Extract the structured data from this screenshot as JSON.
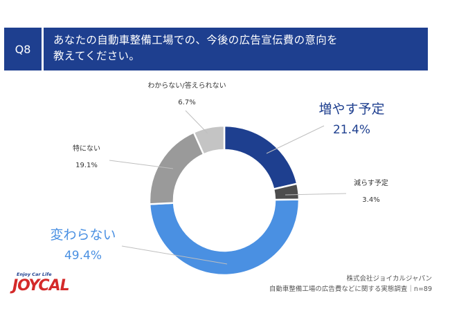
{
  "header": {
    "question_no": "Q8",
    "title_line1": "あなたの自動車整備工場での、今後の広告宣伝費の意向を",
    "title_line2": "教えてください。"
  },
  "chart_data": {
    "type": "pie",
    "donut": true,
    "title": "",
    "slices": [
      {
        "label": "増やす予定",
        "value": 21.4,
        "display": "21.4%",
        "color": "#1e3f8f"
      },
      {
        "label": "減らす予定",
        "value": 3.4,
        "display": "3.4%",
        "color": "#4d4d4d"
      },
      {
        "label": "変わらない",
        "value": 49.4,
        "display": "49.4%",
        "color": "#4a90e2"
      },
      {
        "label": "特にない",
        "value": 19.1,
        "display": "19.1%",
        "color": "#9a9a9a"
      },
      {
        "label": "わからない/答えられない",
        "value": 6.7,
        "display": "6.7%",
        "color": "#c4c4c4"
      }
    ]
  },
  "footer": {
    "company": "株式会社ジョイカルジャパン",
    "survey": "自動車整備工場の広告費などに関する実態調査｜n=89"
  },
  "logo": {
    "tagline": "Enjoy Car Life",
    "wordmark": "JOYCAL"
  }
}
